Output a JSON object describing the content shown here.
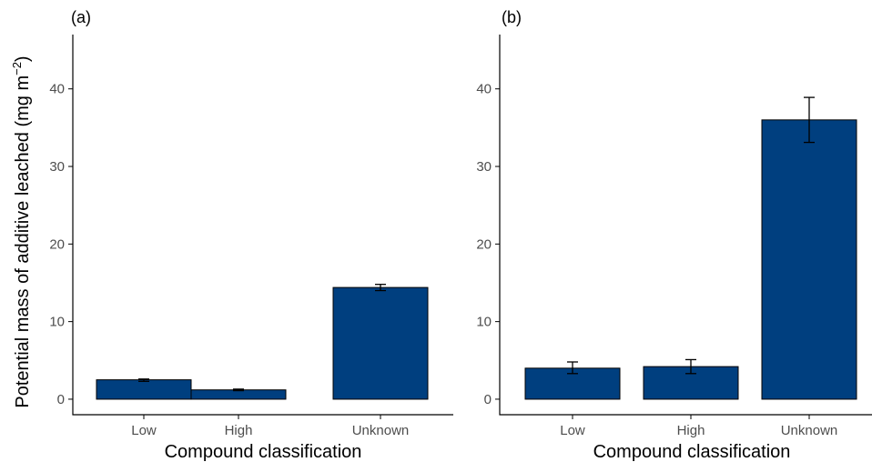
{
  "colors": {
    "bar_fill": "#003F7F",
    "bar_stroke": "#000000",
    "axis": "#000000",
    "tick_label": "#4D4D4D"
  },
  "shared": {
    "ylabel_main": "Potential mass of additive leached (mg m",
    "ylabel_sup": "−2",
    "ylabel_close": ")"
  },
  "chart_data": [
    {
      "type": "bar",
      "panel_label": "(a)",
      "xlabel": "Compound classification",
      "categories": [
        "Low",
        "High",
        "Unknown"
      ],
      "values": [
        2.5,
        1.2,
        14.4
      ],
      "error_low": [
        2.3,
        1.1,
        14.0
      ],
      "error_high": [
        2.6,
        1.3,
        14.8
      ],
      "ylim": [
        -2,
        47
      ],
      "yticks": [
        0,
        10,
        20,
        30,
        40
      ],
      "ytick_labels": [
        "0",
        "10",
        "20",
        "30",
        "40"
      ],
      "grid": false
    },
    {
      "type": "bar",
      "panel_label": "(b)",
      "xlabel": "Compound classification",
      "categories": [
        "Low",
        "High",
        "Unknown"
      ],
      "values": [
        4.0,
        4.2,
        36.0
      ],
      "error_low": [
        3.3,
        3.3,
        33.1
      ],
      "error_high": [
        4.8,
        5.1,
        38.9
      ],
      "ylim": [
        -2,
        47
      ],
      "yticks": [
        0,
        10,
        20,
        30,
        40
      ],
      "ytick_labels": [
        "0",
        "10",
        "20",
        "30",
        "40"
      ],
      "grid": false
    }
  ]
}
